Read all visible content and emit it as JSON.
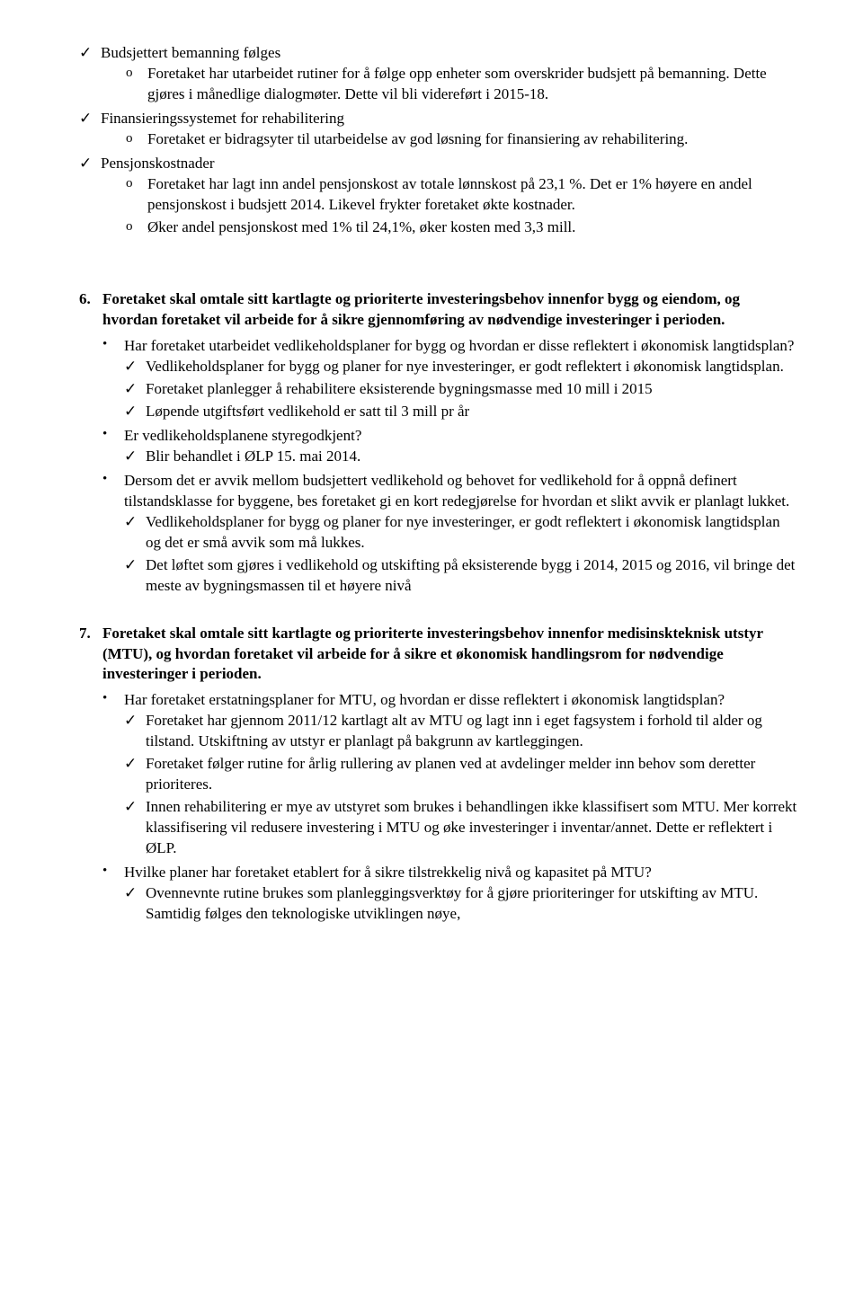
{
  "topChecks": [
    {
      "label": "Budsjettert bemanning følges",
      "subs": [
        "Foretaket har utarbeidet rutiner for å følge opp enheter som overskrider budsjett på bemanning. Dette gjøres i månedlige dialogmøter. Dette vil bli videreført i 2015-18."
      ]
    },
    {
      "label": "Finansieringssystemet for rehabilitering",
      "subs": [
        "Foretaket er bidragsyter til utarbeidelse av god løsning for finansiering av rehabilitering."
      ]
    },
    {
      "label": "Pensjonskostnader",
      "subs": [
        "Foretaket har lagt inn andel pensjonskost av totale lønnskost på 23,1 %. Det er 1% høyere en andel pensjonskost i budsjett 2014. Likevel frykter foretaket økte kostnader.",
        "Øker andel pensjonskost med 1% til 24,1%, øker kosten med 3,3 mill."
      ]
    }
  ],
  "section6": {
    "num": "6.",
    "heading": "Foretaket skal omtale sitt kartlagte og prioriterte investeringsbehov innenfor bygg og eiendom, og hvordan foretaket vil arbeide for å sikre gjennomføring av nødvendige investeringer i perioden.",
    "bullets": [
      {
        "text": "Har foretaket utarbeidet vedlikeholdsplaner for bygg og hvordan er disse reflektert i økonomisk langtidsplan?",
        "checks": [
          "Vedlikeholdsplaner for bygg og planer for nye investeringer, er godt reflektert i økonomisk langtidsplan.",
          "Foretaket planlegger å rehabilitere eksisterende bygningsmasse med 10 mill i 2015",
          "Løpende utgiftsført vedlikehold er satt til 3 mill pr år"
        ]
      },
      {
        "text": "Er vedlikeholdsplanene styregodkjent?",
        "checks": [
          "Blir behandlet i ØLP 15. mai 2014."
        ]
      },
      {
        "text": "Dersom det er avvik mellom budsjettert vedlikehold og behovet for vedlikehold for å oppnå definert tilstandsklasse for byggene, bes foretaket gi en kort redegjørelse for hvordan et slikt avvik er planlagt lukket.",
        "checks": [
          "Vedlikeholdsplaner for bygg og planer for nye investeringer, er godt reflektert i økonomisk langtidsplan og det er små avvik som må lukkes.",
          "Det løftet som gjøres i vedlikehold og utskifting på eksisterende bygg i 2014, 2015 og 2016, vil bringe det meste av bygningsmassen til et høyere nivå"
        ]
      }
    ]
  },
  "section7": {
    "num": "7.",
    "heading": "Foretaket skal omtale sitt kartlagte og prioriterte investeringsbehov innenfor medisinskteknisk utstyr (MTU), og hvordan foretaket vil arbeide for å sikre et økonomisk handlingsrom for nødvendige investeringer i perioden.",
    "bullets": [
      {
        "text": "Har foretaket erstatningsplaner for MTU, og hvordan er disse reflektert i økonomisk langtidsplan?",
        "checks": [
          "Foretaket har gjennom 2011/12 kartlagt alt av MTU og lagt inn i eget fagsystem i forhold til alder og tilstand.  Utskiftning av utstyr er planlagt på bakgrunn av kartleggingen.",
          "Foretaket følger rutine for årlig rullering av planen ved at avdelinger melder inn behov som deretter prioriteres.",
          "Innen rehabilitering er mye av utstyret som brukes i behandlingen ikke klassifisert som MTU. Mer korrekt klassifisering vil redusere investering i MTU og øke investeringer i inventar/annet. Dette er reflektert i ØLP."
        ]
      },
      {
        "text": "Hvilke planer har foretaket etablert for å sikre tilstrekkelig nivå og kapasitet på MTU?",
        "checks": [
          "Ovennevnte rutine brukes som planleggingsverktøy for å gjøre prioriteringer for utskifting av MTU. Samtidig følges den teknologiske utviklingen nøye,"
        ]
      }
    ]
  }
}
